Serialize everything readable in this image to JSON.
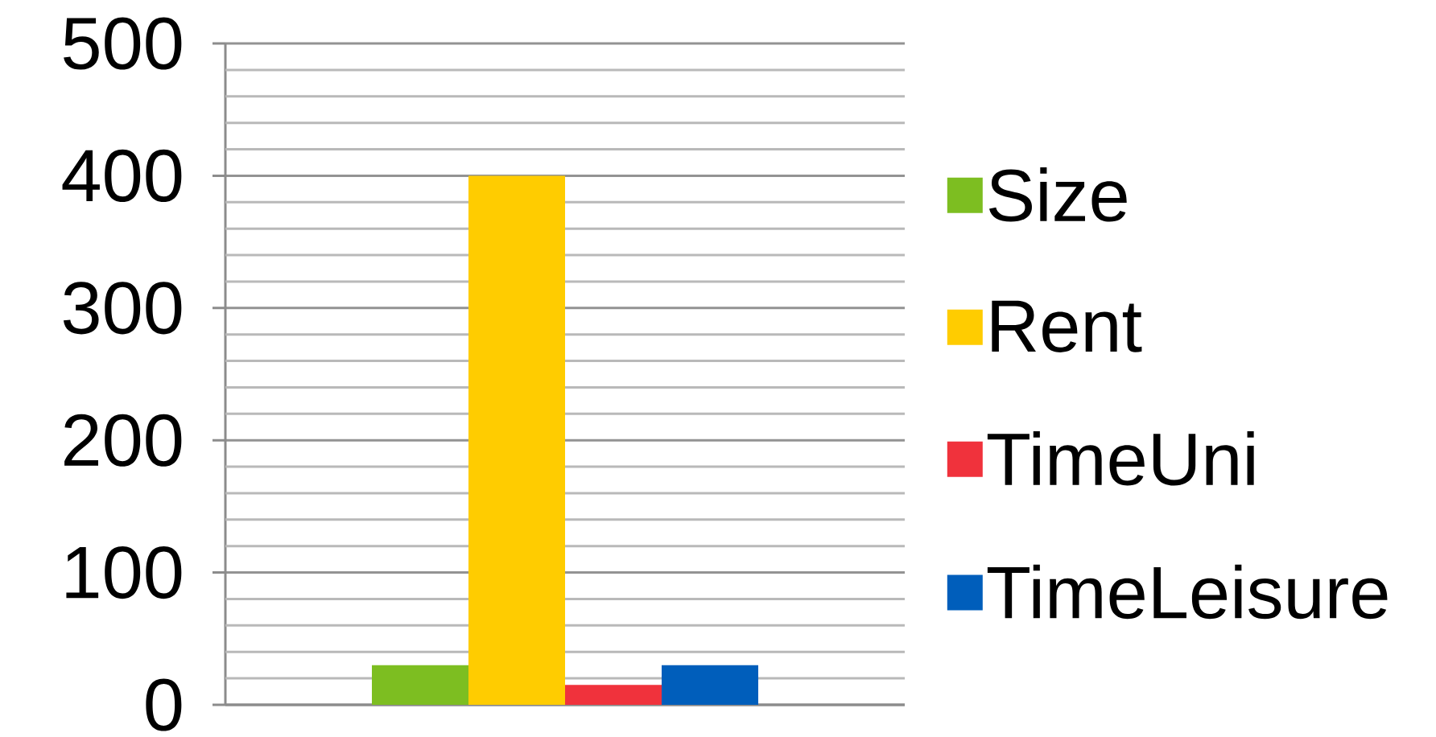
{
  "chart_data": {
    "type": "bar",
    "categories": [
      null
    ],
    "series": [
      {
        "name": "Size",
        "color": "#7dbe21",
        "values": [
          30
        ]
      },
      {
        "name": "Rent",
        "color": "#ffcc00",
        "values": [
          400
        ]
      },
      {
        "name": "TimeUni",
        "color": "#f0323c",
        "values": [
          15
        ]
      },
      {
        "name": "TimeLeisure",
        "color": "#005ebb",
        "values": [
          30
        ]
      }
    ],
    "ylim": [
      0,
      500
    ],
    "yticks": [
      0,
      {
        "value": 20,
        "label": null
      },
      {
        "value": 40,
        "label": null
      },
      {
        "value": 60,
        "label": null
      },
      {
        "value": 80,
        "label": null
      },
      100,
      {
        "value": 120,
        "label": null
      },
      {
        "value": 140,
        "label": null
      },
      {
        "value": 160,
        "label": null
      },
      {
        "value": 180,
        "label": null
      },
      200,
      {
        "value": 220,
        "label": null
      },
      {
        "value": 240,
        "label": null
      },
      {
        "value": 260,
        "label": null
      },
      {
        "value": 280,
        "label": null
      },
      300,
      {
        "value": 320,
        "label": null
      },
      {
        "value": 340,
        "label": null
      },
      {
        "value": 360,
        "label": null
      },
      {
        "value": 380,
        "label": null
      },
      400,
      {
        "value": 420,
        "label": null
      },
      {
        "value": 440,
        "label": null
      },
      {
        "value": 460,
        "label": null
      },
      {
        "value": 480,
        "label": null
      },
      500
    ],
    "grid": "y",
    "legend": "right"
  }
}
